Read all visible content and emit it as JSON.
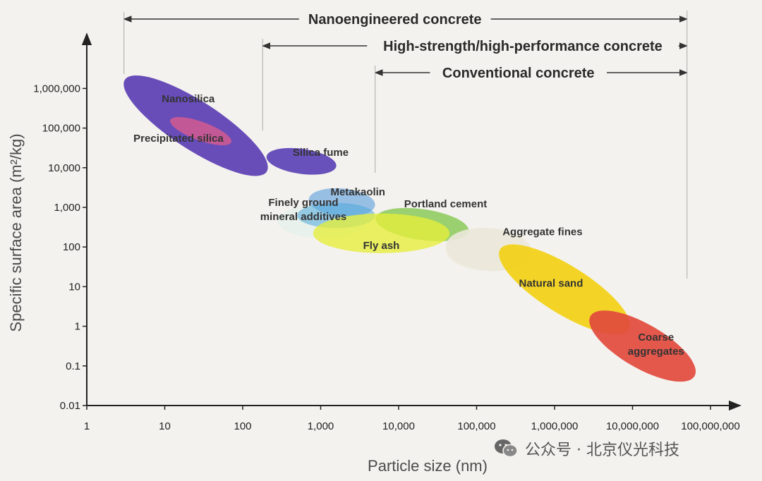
{
  "chart_data": {
    "type": "scatter",
    "xlabel": "Particle size (nm)",
    "ylabel": "Specific surface area (m²/kg)",
    "xscale": "log",
    "yscale": "log",
    "xlim": [
      1,
      100000000
    ],
    "ylim": [
      0.01,
      10000000
    ],
    "xticks": [
      1,
      10,
      100,
      1000,
      10000,
      100000,
      1000000,
      10000000,
      100000000
    ],
    "xtick_labels": [
      "1",
      "10",
      "100",
      "1,000",
      "10,000",
      "100,000",
      "1,000,000",
      "10,000,000",
      "100,000,000"
    ],
    "yticks": [
      0.01,
      0.1,
      1,
      10,
      100,
      1000,
      10000,
      100000,
      1000000
    ],
    "ytick_labels": [
      "0.01",
      "0.1",
      "1",
      "10",
      "100",
      "1,000",
      "10,000",
      "100,000",
      "1,000,000"
    ],
    "grid": false,
    "regions": [
      {
        "label": "",
        "x_range": [
          280,
          4000
        ],
        "y_range": [
          170,
          1200
        ],
        "color": "#dcefe8"
      },
      {
        "label": "",
        "x_range": [
          40000,
          500000
        ],
        "y_range": [
          25,
          300
        ],
        "color": "#ebe8da"
      },
      {
        "label": "Nanosilica",
        "x_range": [
          2.5,
          250
        ],
        "y_range": [
          12000,
          1100000
        ],
        "color": "#5b3fb4",
        "label_x": 20,
        "label_y": 450000
      },
      {
        "label": "Precipitated silica",
        "x_range": [
          12,
          70
        ],
        "y_range": [
          35000,
          200000
        ],
        "color": "#d45a8f",
        "label_x": 15,
        "label_y": 45000
      },
      {
        "label": "Silica fume",
        "x_range": [
          200,
          1600
        ],
        "y_range": [
          7000,
          30000
        ],
        "color": "#5a3fb6",
        "label_x": 1000,
        "label_y": 20000
      },
      {
        "label": "Metakaolin",
        "x_range": [
          700,
          5000
        ],
        "y_range": [
          600,
          3000
        ],
        "color": "#78aee0",
        "label_x": 3000,
        "label_y": 2000
      },
      {
        "label": "Finely ground\nmineral additives",
        "x_range": [
          500,
          5000
        ],
        "y_range": [
          300,
          1300
        ],
        "color": "#4ea8dc",
        "label_x": 600,
        "label_y": 750
      },
      {
        "label": "Portland cement",
        "x_range": [
          5000,
          80000
        ],
        "y_range": [
          150,
          900
        ],
        "color": "#77c23e",
        "label_x": 40000,
        "label_y": 1000
      },
      {
        "label": "Fly ash",
        "x_range": [
          800,
          45000
        ],
        "y_range": [
          70,
          700
        ],
        "color": "#e6ee3a",
        "label_x": 6000,
        "label_y": 90
      },
      {
        "label": "Aggregate fines",
        "x_range": [
          40000,
          500000
        ],
        "y_range": [
          25,
          300
        ],
        "color": "#ebe8da",
        "label_x": 700000,
        "label_y": 200
      },
      {
        "label": "Natural sand",
        "x_range": [
          180000,
          10000000
        ],
        "y_range": [
          0.9,
          80
        ],
        "color": "#f2d21a",
        "label_x": 900000,
        "label_y": 10
      },
      {
        "label": "Coarse\naggregates",
        "x_range": [
          3000000,
          60000000
        ],
        "y_range": [
          0.04,
          2.5
        ],
        "color": "#e24a3d",
        "label_x": 20000000,
        "label_y": 0.3
      }
    ],
    "spans": [
      {
        "label": "Nanoengineered concrete",
        "x_start": 3,
        "x_end": 50000000,
        "level": 1
      },
      {
        "label": "High-strength/high-performance concrete",
        "x_start": 180,
        "x_end": 50000000,
        "level": 2
      },
      {
        "label": "Conventional concrete",
        "x_start": 5000,
        "x_end": 50000000,
        "level": 3
      }
    ]
  },
  "watermark": {
    "icon": "wechat-icon",
    "text": "公众号 · 北京仪光科技"
  }
}
